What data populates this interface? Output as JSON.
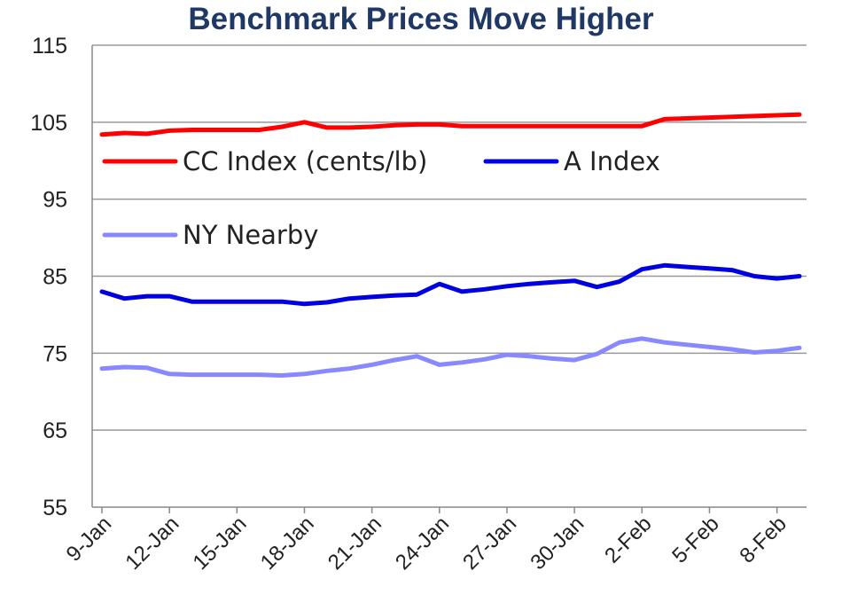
{
  "chart_data": {
    "type": "line",
    "title": "Benchmark Prices Move Higher",
    "xlabel": "",
    "ylabel": "",
    "ylim": [
      55,
      115
    ],
    "yticks": [
      55,
      65,
      75,
      85,
      95,
      105,
      115
    ],
    "x_tick_labels": [
      "9-Jan",
      "12-Jan",
      "15-Jan",
      "18-Jan",
      "21-Jan",
      "24-Jan",
      "27-Jan",
      "30-Jan",
      "2-Feb",
      "5-Feb",
      "8-Feb"
    ],
    "x": [
      "9-Jan",
      "10-Jan",
      "11-Jan",
      "12-Jan",
      "13-Jan",
      "14-Jan",
      "15-Jan",
      "16-Jan",
      "17-Jan",
      "18-Jan",
      "19-Jan",
      "20-Jan",
      "21-Jan",
      "22-Jan",
      "23-Jan",
      "24-Jan",
      "25-Jan",
      "26-Jan",
      "27-Jan",
      "28-Jan",
      "29-Jan",
      "30-Jan",
      "31-Jan",
      "1-Feb",
      "2-Feb",
      "3-Feb",
      "4-Feb",
      "5-Feb",
      "6-Feb",
      "7-Feb",
      "8-Feb",
      "9-Feb"
    ],
    "grid": true,
    "legend_position": "upper-left inside plot",
    "series": [
      {
        "name": "CC Index (cents/lb)",
        "color": "#ff0000",
        "values": [
          103.4,
          103.6,
          103.5,
          103.9,
          104.0,
          104.0,
          104.0,
          104.0,
          104.4,
          105.0,
          104.3,
          104.3,
          104.4,
          104.6,
          104.7,
          104.7,
          104.5,
          104.5,
          104.5,
          104.5,
          104.5,
          104.5,
          104.5,
          104.5,
          104.5,
          105.4,
          105.5,
          105.6,
          105.7,
          105.8,
          105.9,
          106.0
        ]
      },
      {
        "name": "A Index",
        "color": "#0000e0",
        "values": [
          83.0,
          82.1,
          82.4,
          82.4,
          81.7,
          81.7,
          81.7,
          81.7,
          81.7,
          81.4,
          81.6,
          82.1,
          82.3,
          82.5,
          82.6,
          84.0,
          83.0,
          83.3,
          83.7,
          84.0,
          84.2,
          84.4,
          83.6,
          84.3,
          85.9,
          86.4,
          86.2,
          86.0,
          85.8,
          85.0,
          84.7,
          85.0
        ]
      },
      {
        "name": "NY Nearby",
        "color": "#8888ff",
        "values": [
          73.0,
          73.2,
          73.1,
          72.3,
          72.2,
          72.2,
          72.2,
          72.2,
          72.1,
          72.3,
          72.7,
          73.0,
          73.5,
          74.1,
          74.6,
          73.5,
          73.8,
          74.2,
          74.8,
          74.6,
          74.3,
          74.1,
          74.9,
          76.4,
          76.9,
          76.4,
          76.1,
          75.8,
          75.5,
          75.1,
          75.3,
          75.7
        ]
      }
    ]
  }
}
